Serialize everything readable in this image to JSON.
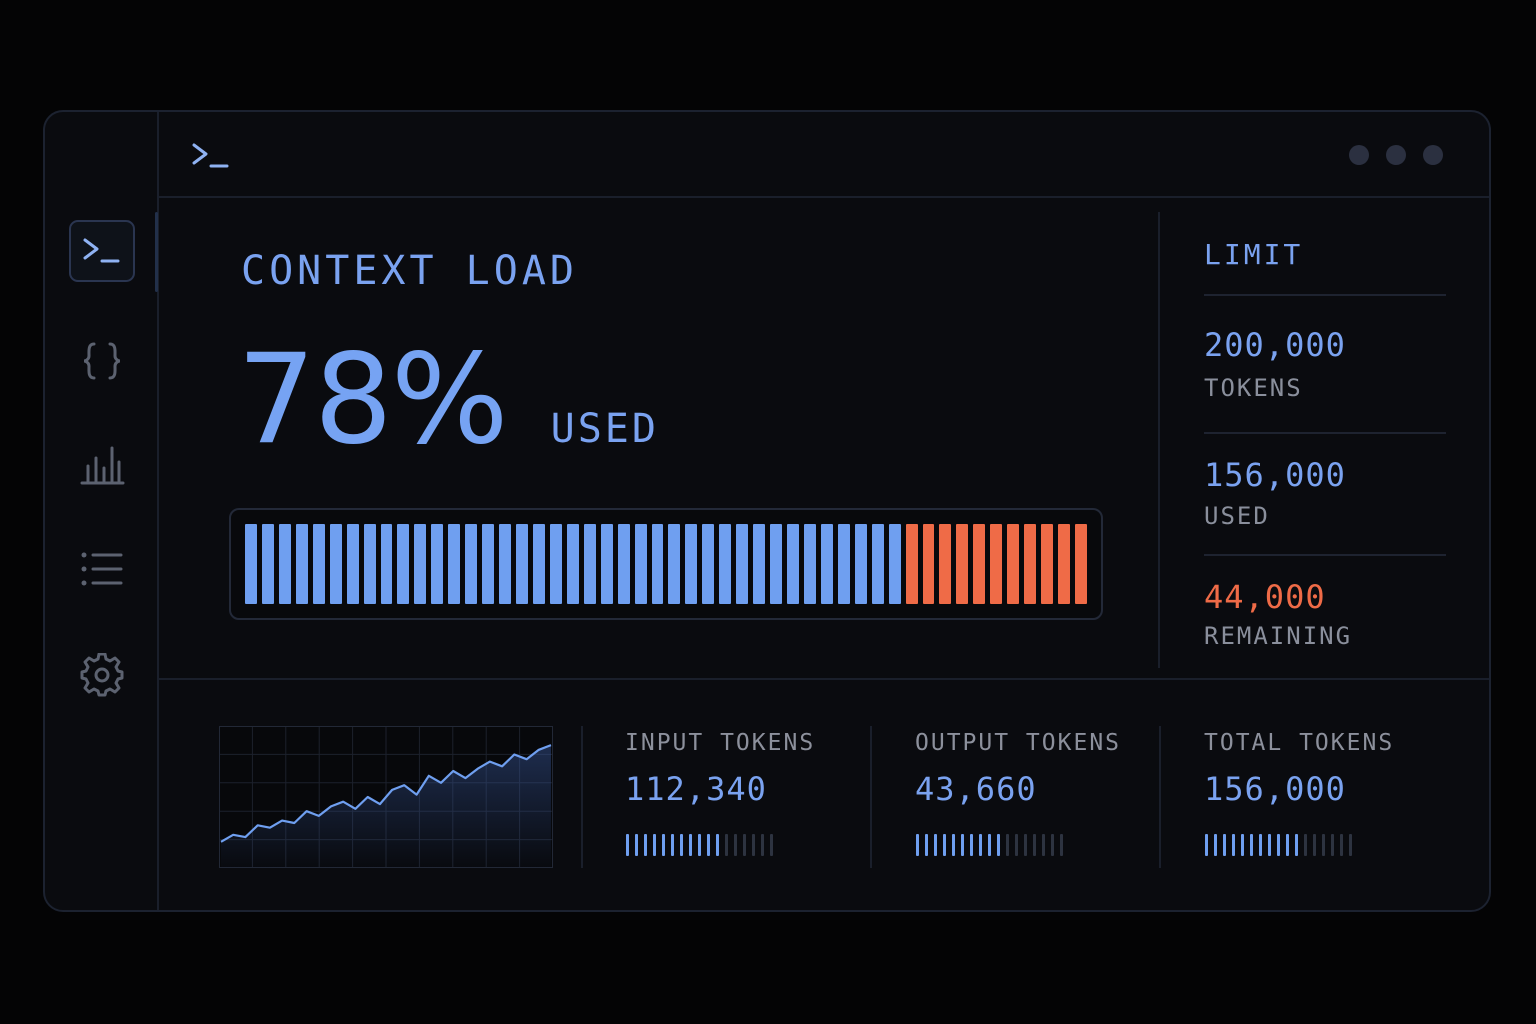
{
  "colors": {
    "accent": "#7aa2f0",
    "used": "#6f9ff0",
    "remaining": "#ef6b47",
    "muted_label": "#8a8f9c",
    "tick_off": "#2d3340"
  },
  "header": {
    "prompt_icon": "terminal-prompt-icon",
    "dots": [
      "dot",
      "dot",
      "dot"
    ]
  },
  "sidebar": {
    "items": [
      {
        "name": "terminal",
        "icon": "terminal-icon",
        "active": true
      },
      {
        "name": "code",
        "icon": "braces-icon",
        "active": false
      },
      {
        "name": "analytics",
        "icon": "bar-chart-icon",
        "active": false
      },
      {
        "name": "list",
        "icon": "list-icon",
        "active": false
      },
      {
        "name": "settings",
        "icon": "gear-icon",
        "active": false
      }
    ]
  },
  "main": {
    "title": "CONTEXT LOAD",
    "percent": "78%",
    "used_label": "USED",
    "progress": {
      "used_fraction": 0.78,
      "segments": 50
    }
  },
  "side_panel": {
    "title": "LIMIT",
    "limit": {
      "value": "200,000",
      "label": "TOKENS"
    },
    "used": {
      "value": "156,000",
      "label": "USED"
    },
    "remaining": {
      "value": "44,000",
      "label": "REMAINING"
    }
  },
  "sparkline": {
    "values": [
      0.12,
      0.18,
      0.16,
      0.26,
      0.24,
      0.3,
      0.28,
      0.38,
      0.34,
      0.42,
      0.46,
      0.4,
      0.5,
      0.44,
      0.56,
      0.6,
      0.52,
      0.68,
      0.62,
      0.72,
      0.66,
      0.74,
      0.8,
      0.76,
      0.86,
      0.82,
      0.9,
      0.94
    ]
  },
  "metrics": [
    {
      "label": "INPUT TOKENS",
      "value": "112,340",
      "fill_fraction": 0.64
    },
    {
      "label": "OUTPUT TOKENS",
      "value": "43,660",
      "fill_fraction": 0.61
    },
    {
      "label": "TOTAL TOKENS",
      "value": "156,000",
      "fill_fraction": 0.64
    }
  ]
}
